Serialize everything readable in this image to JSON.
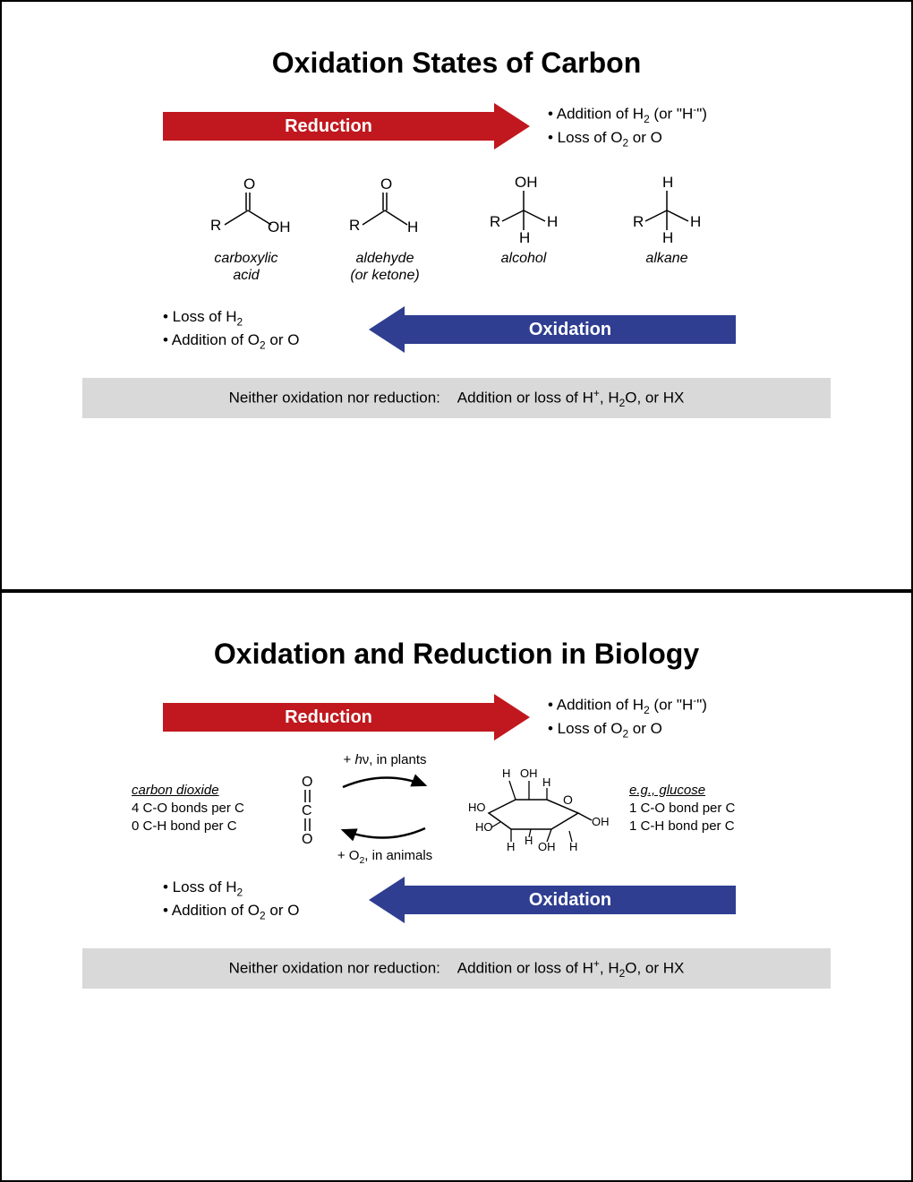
{
  "colors": {
    "reduction": "#c0181e",
    "oxidation": "#2f3e91",
    "grey": "#d9d9d9",
    "black": "#000000",
    "white": "#ffffff"
  },
  "slide1": {
    "title": "Oxidation States of Carbon",
    "reduction_label": "Reduction",
    "reduction_bullets_html": "• Addition of H<sub>2</sub> (or \"H<sup>-</sup>\")<br>• Loss of O<sub>2</sub> or O",
    "oxidation_label": "Oxidation",
    "oxidation_bullets_html": "• Loss of H<sub>2</sub><br>• Addition of O<sub>2</sub> or O",
    "neutral_html": "Neither oxidation nor reduction:&nbsp;&nbsp;&nbsp;&nbsp;Addition or loss of H<sup>+</sup>, H<sub>2</sub>O, or HX",
    "molecules": [
      {
        "label_html": "carboxylic<br>acid"
      },
      {
        "label_html": "aldehyde<br>(or ketone)"
      },
      {
        "label_html": "alcohol"
      },
      {
        "label_html": "alkane"
      }
    ]
  },
  "slide2": {
    "title": "Oxidation and Reduction in Biology",
    "reduction_label": "Reduction",
    "reduction_bullets_html": "• Addition of H<sub>2</sub> (or \"H<sup>-</sup>\")<br>• Loss of O<sub>2</sub> or O",
    "oxidation_label": "Oxidation",
    "oxidation_bullets_html": "• Loss of H<sub>2</sub><br>• Addition of O<sub>2</sub> or O",
    "neutral_html": "Neither oxidation nor reduction:&nbsp;&nbsp;&nbsp;&nbsp;Addition or loss of H<sup>+</sup>, H<sub>2</sub>O, or HX",
    "left_text_html": "<span class='ul'>carbon dioxide</span><br>4 C-O bonds per C<br>0 C-H bond per C",
    "right_text_html": "<span class='ul'>e.g., glucose</span><br>1 C-O bond per C<br>1 C-H bond per C",
    "top_cycle_html": "+ <i>h</i>ν, in plants",
    "bottom_cycle_html": "+ O<sub>2</sub>, in animals"
  }
}
